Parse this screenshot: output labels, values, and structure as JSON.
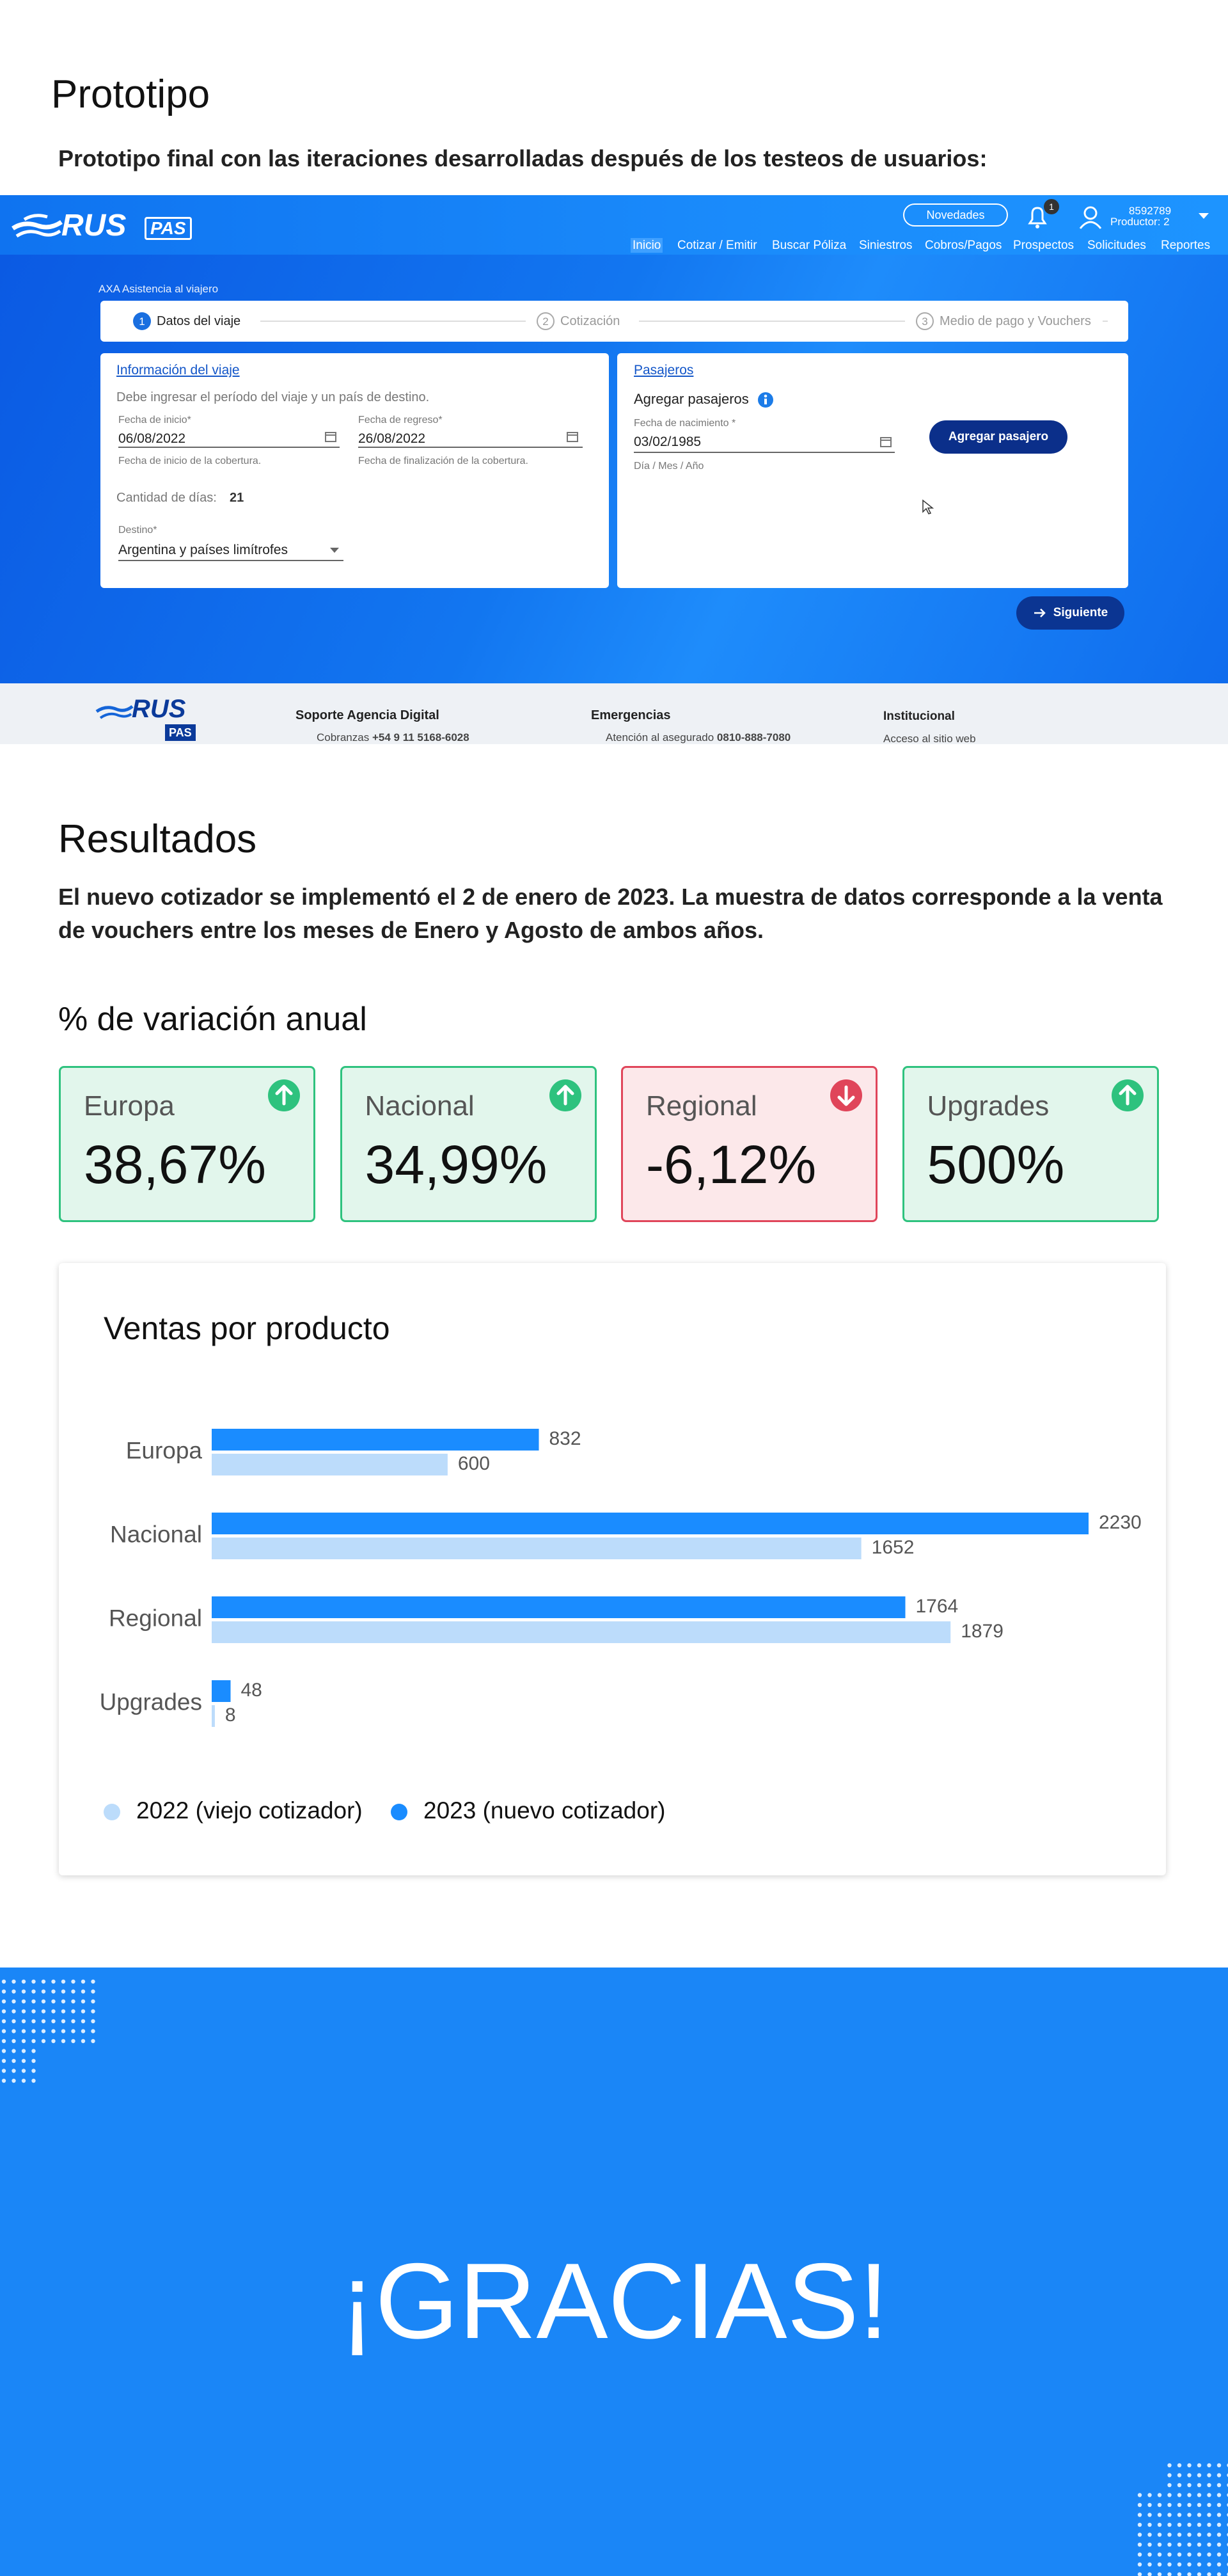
{
  "prototype": {
    "title": "Prototipo",
    "subtitle": "Prototipo final con las iteraciones desarrolladas después de los testeos de usuarios:"
  },
  "screenshot": {
    "logo": {
      "name": "RUS",
      "tag": "PAS"
    },
    "header": {
      "news": "Novedades",
      "notifications": "1",
      "user_id": "8592789",
      "user_role": "Productor: 2"
    },
    "nav": [
      "Inicio",
      "Cotizar / Emitir",
      "Buscar Póliza",
      "Siniestros",
      "Cobros/Pagos",
      "Prospectos",
      "Solicitudes",
      "Reportes"
    ],
    "breadcrumb": "AXA Asistencia al viajero",
    "steps": [
      {
        "number": "1",
        "label": "Datos del viaje"
      },
      {
        "number": "2",
        "label": "Cotización"
      },
      {
        "number": "3",
        "label": "Medio de pago y Vouchers"
      }
    ],
    "trip": {
      "title": "Información del viaje",
      "hint": "Debe ingresar el período del viaje y un país de destino.",
      "start_label": "Fecha de inicio*",
      "start_value": "06/08/2022",
      "start_help": "Fecha de inicio de la cobertura.",
      "end_label": "Fecha de regreso*",
      "end_value": "26/08/2022",
      "end_help": "Fecha de finalización de la cobertura.",
      "days_label": "Cantidad de días:",
      "days_value": "21",
      "destination_label": "Destino*",
      "destination_value": "Argentina y países limítrofes"
    },
    "passengers": {
      "title": "Pasajeros",
      "subtitle": "Agregar pasajeros",
      "birth_label": "Fecha de nacimiento *",
      "birth_value": "03/02/1985",
      "birth_help": "Día / Mes / Año",
      "button": "Agregar pasajero"
    },
    "next_button": "Siguiente",
    "footer": {
      "support_title": "Soporte Agencia Digital",
      "support_label": "Cobranzas",
      "support_value": "+54 9 11 5168-6028",
      "emergency_title": "Emergencias",
      "emergency_label": "Atención al asegurado",
      "emergency_value": "0810-888-7080",
      "institutional_title": "Institucional",
      "institutional_text": "Acceso al sitio web"
    }
  },
  "results": {
    "title": "Resultados",
    "description": "El nuevo cotizador se implementó el 2 de enero de 2023. La muestra de datos corresponde a la venta de vouchers entre los meses de Enero y Agosto de ambos años."
  },
  "variation": {
    "title": "% de variación anual",
    "cards": [
      {
        "label": "Europa",
        "value": "38,67%",
        "trend": "up"
      },
      {
        "label": "Nacional",
        "value": "34,99%",
        "trend": "up"
      },
      {
        "label": "Regional",
        "value": "-6,12%",
        "trend": "down"
      },
      {
        "label": "Upgrades",
        "value": "500%",
        "trend": "up"
      }
    ]
  },
  "chart_data": {
    "type": "bar",
    "orientation": "horizontal",
    "title": "Ventas por producto",
    "categories": [
      "Europa",
      "Nacional",
      "Regional",
      "Upgrades"
    ],
    "series": [
      {
        "name": "2022 (viejo cotizador)",
        "color": "#bcdcfb",
        "values": [
          600,
          1652,
          1879,
          8
        ]
      },
      {
        "name": "2023 (nuevo cotizador)",
        "color": "#1a8cff",
        "values": [
          832,
          2230,
          1764,
          48
        ]
      }
    ],
    "legend": "bottom-left"
  },
  "closing": {
    "text": "¡GRACIAS!"
  }
}
